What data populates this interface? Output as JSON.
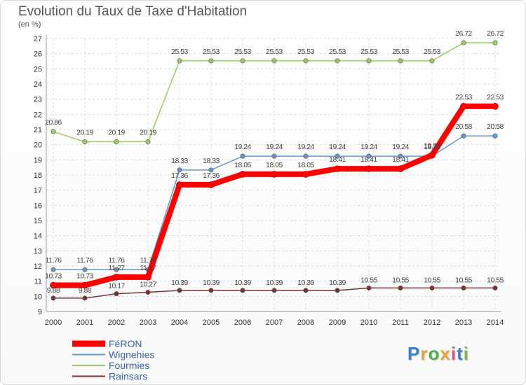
{
  "chart_data": {
    "type": "line",
    "title": "Evolution du Taux de Taxe d'Habitation",
    "ylabel": "(en %)",
    "xlabel": "",
    "x": [
      "2000",
      "2001",
      "2002",
      "2003",
      "2004",
      "2005",
      "2006",
      "2007",
      "2008",
      "2009",
      "2010",
      "2011",
      "2012",
      "2013",
      "2014"
    ],
    "ylim": [
      9,
      27
    ],
    "yticks": [
      9,
      10,
      11,
      12,
      13,
      14,
      15,
      16,
      17,
      18,
      19,
      20,
      21,
      22,
      23,
      24,
      25,
      26,
      27
    ],
    "grid": true,
    "legend_position": "bottom-left",
    "series": [
      {
        "name": "FéRON",
        "color": "#ff0000",
        "values": [
          10.73,
          10.73,
          11.27,
          11.27,
          17.36,
          17.36,
          18.05,
          18.05,
          18.05,
          18.41,
          18.41,
          18.41,
          19.31,
          22.53,
          22.53
        ],
        "labels": [
          "10.73",
          "10.73",
          "11.27",
          "11.27",
          "17.36",
          "17.36",
          "18.05",
          "18.05",
          "18.05",
          "18.41",
          "18.41",
          "18.41",
          "19.31",
          "22.53",
          "22.53"
        ]
      },
      {
        "name": "Wignehies",
        "color": "#6699cc",
        "values": [
          11.76,
          11.76,
          11.76,
          11.76,
          18.33,
          18.33,
          19.24,
          19.24,
          19.24,
          19.24,
          19.24,
          19.24,
          19.24,
          20.58,
          20.58
        ],
        "labels": [
          "11.76",
          "11.76",
          "11.76",
          "11.76",
          "18.33",
          "18.33",
          "19.24",
          "19.24",
          "19.24",
          "19.24",
          "19.24",
          "19.24",
          "19.24",
          "20.58",
          "20.58"
        ]
      },
      {
        "name": "Fourmies",
        "color": "#99cc66",
        "values": [
          20.86,
          20.19,
          20.19,
          20.19,
          25.53,
          25.53,
          25.53,
          25.53,
          25.53,
          25.53,
          25.53,
          25.53,
          25.53,
          26.72,
          26.72
        ],
        "labels": [
          "20.86",
          "20.19",
          "20.19",
          "20.19",
          "25.53",
          "25.53",
          "25.53",
          "25.53",
          "25.53",
          "25.53",
          "25.53",
          "25.53",
          "25.53",
          "26.72",
          "26.72"
        ]
      },
      {
        "name": "Rainsars",
        "color": "#7a3333",
        "values": [
          9.88,
          9.88,
          10.17,
          10.27,
          10.39,
          10.39,
          10.39,
          10.39,
          10.39,
          10.39,
          10.55,
          10.55,
          10.55,
          10.55,
          10.55
        ],
        "labels": [
          "9.88",
          "9.88",
          "10.17",
          "10.27",
          "10.39",
          "10.39",
          "10.39",
          "10.39",
          "10.39",
          "10.39",
          "10.55",
          "10.55",
          "10.55",
          "10.55",
          "10.55"
        ]
      }
    ]
  },
  "logo": {
    "letters": [
      "P",
      "r",
      "o",
      "x",
      "i",
      "t",
      "i"
    ],
    "colors": [
      "#3b7fc4",
      "#e8a23a",
      "#4caf50",
      "#e8a23a",
      "#d94f8a",
      "#3b7fc4",
      "#7ab648"
    ]
  }
}
